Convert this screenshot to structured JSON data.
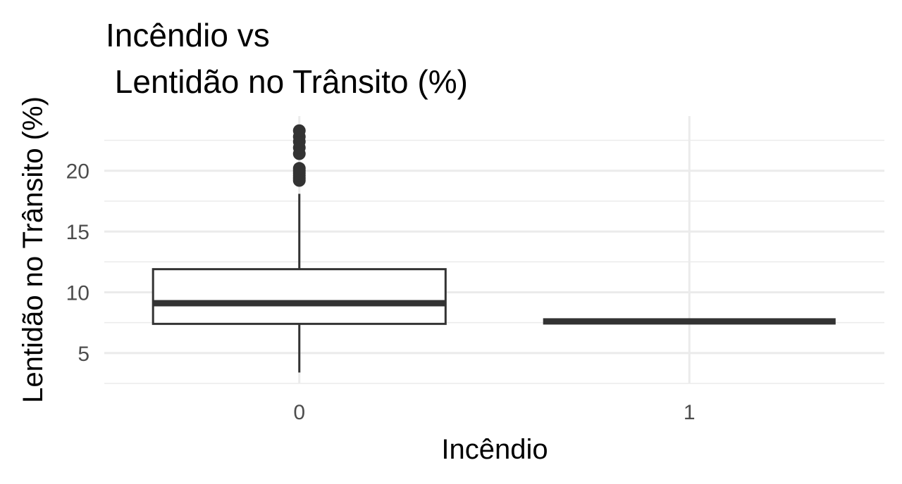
{
  "chart_data": {
    "type": "box",
    "title_lines": [
      "Incêndio vs",
      " Lentidão no Trânsito (%)"
    ],
    "xlabel": "Incêndio",
    "ylabel": "Lentidão no Trânsito (%)",
    "categories": [
      "0",
      "1"
    ],
    "yticks": [
      "5",
      "10",
      "15",
      "20"
    ],
    "ylim": [
      2.5,
      24.5
    ],
    "grid": true,
    "boxes": [
      {
        "category": "0",
        "whisker_low": 3.4,
        "q1": 7.4,
        "median": 9.1,
        "q3": 11.9,
        "whisker_high": 18.1,
        "outliers": [
          19.2,
          19.4,
          19.6,
          19.8,
          20.0,
          20.2,
          21.4,
          21.9,
          22.4,
          22.8,
          23.3
        ]
      },
      {
        "category": "1",
        "whisker_low": 7.6,
        "q1": 7.6,
        "median": 7.6,
        "q3": 7.6,
        "whisker_high": 7.6,
        "outliers": []
      }
    ],
    "colors": {
      "box": "#333333",
      "grid": "#ebebeb",
      "tick_text": "#4d4d4d"
    }
  }
}
